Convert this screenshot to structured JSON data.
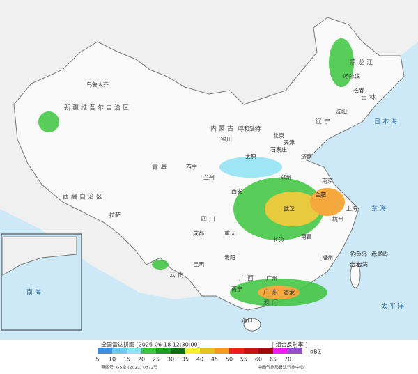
{
  "title": "全国雷达拼图 [2026-06-18 12:30:00]",
  "product": "[ 组合反射率 ]",
  "legend": {
    "values": [
      5,
      10,
      15,
      20,
      25,
      30,
      35,
      40,
      45,
      50,
      55,
      60,
      65,
      70
    ],
    "colors": [
      "#3f8fe0",
      "#6ec8f0",
      "#8ee2f5",
      "#3cc43c",
      "#1e9e1e",
      "#0f6e0f",
      "#f5f032",
      "#e6c21e",
      "#f59a1e",
      "#f01e1e",
      "#c81414",
      "#a00a0a",
      "#f01ef0",
      "#9650c8"
    ],
    "unit": "dBZ"
  },
  "footer": {
    "approval": "审图号: GS京 (2022) 0372号",
    "agency": "中国气象局雷达气象中心"
  },
  "places": [
    "乌鲁木齐",
    "新疆维吾尔自治区",
    "西藏自治区",
    "拉萨",
    "青海",
    "西宁",
    "兰州",
    "银川",
    "呼和浩特",
    "内蒙古",
    "四川",
    "成都",
    "重庆",
    "云南",
    "昆明",
    "贵阳",
    "广西",
    "南宁",
    "广东",
    "广州",
    "海口",
    "香港",
    "澳门",
    "台湾",
    "台北",
    "黑龙江",
    "哈尔滨",
    "吉林",
    "长春",
    "沈阳",
    "辽宁",
    "北京",
    "天津",
    "石家庄",
    "太原",
    "济南",
    "郑州",
    "西安",
    "武汉",
    "长沙",
    "南昌",
    "合肥",
    "南京",
    "上海",
    "杭州",
    "福州",
    "钓鱼岛",
    "赤尾屿",
    "日本海",
    "东海",
    "太平洋",
    "南海"
  ]
}
